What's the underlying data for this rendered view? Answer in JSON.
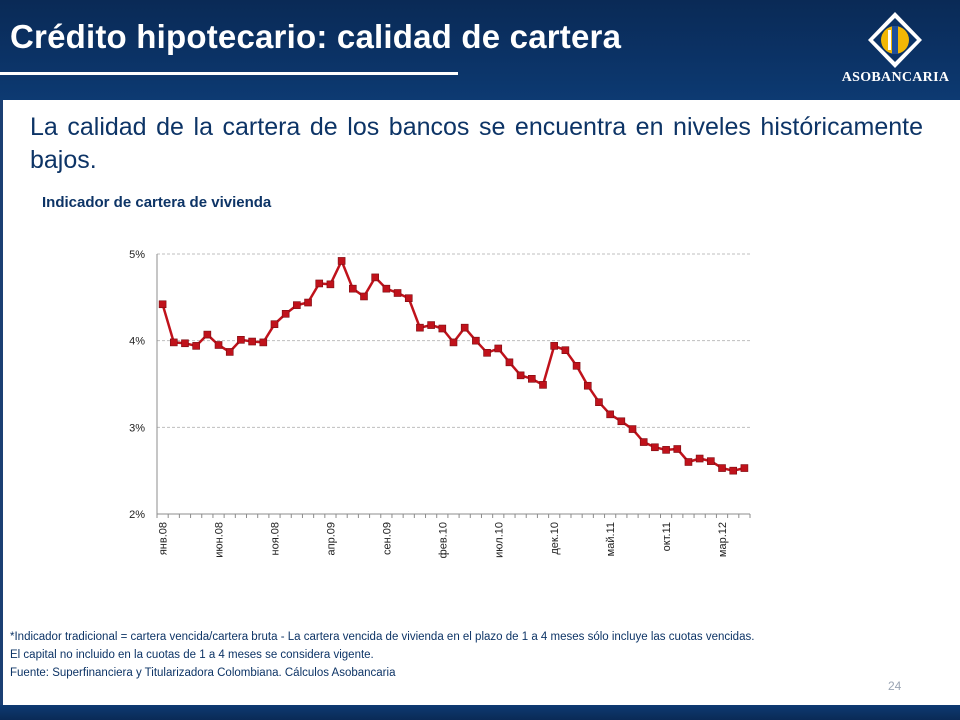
{
  "header": {
    "title": "Crédito hipotecario: calidad de cartera",
    "logo_text": "ASOBANCARIA"
  },
  "lead_text": "La calidad de la cartera de los bancos se encuentra en niveles históricamente bajos.",
  "chart_title": "Indicador de cartera de vivienda",
  "chart_data": {
    "type": "line",
    "title": "Indicador de cartera de vivienda",
    "xlabel": "",
    "ylabel": "",
    "ylim": [
      2,
      5
    ],
    "yticks": [
      "2%",
      "3%",
      "4%",
      "5%"
    ],
    "grid": true,
    "x_tick_labels": [
      "янв.08",
      "июн.08",
      "ноя.08",
      "апр.09",
      "сен.09",
      "фев.10",
      "июл.10",
      "дек.10",
      "май.11",
      "окт.11",
      "мар.12"
    ],
    "x_tick_every": 5,
    "series": [
      {
        "values": [
          4.42,
          3.98,
          3.97,
          3.94,
          4.07,
          3.95,
          3.87,
          4.01,
          3.99,
          3.98,
          4.19,
          4.31,
          4.41,
          4.44,
          4.66,
          4.65,
          4.92,
          4.6,
          4.51,
          4.73,
          4.6,
          4.55,
          4.49,
          4.15,
          4.18,
          4.14,
          3.98,
          4.15,
          4.0,
          3.86,
          3.91,
          3.75,
          3.6,
          3.56,
          3.49,
          3.94,
          3.89,
          3.71,
          3.48,
          3.29,
          3.15,
          3.07,
          2.98,
          2.83,
          2.77,
          2.74,
          2.75,
          2.6,
          2.64,
          2.61,
          2.53,
          2.5,
          2.53
        ],
        "color": "#c0121b"
      }
    ]
  },
  "notes": [
    "*Indicador tradicional = cartera vencida/cartera bruta - La cartera vencida de vivienda en el plazo de 1 a 4 meses sólo incluye las cuotas vencidas.",
    "El capital no incluido en la cuotas de 1 a 4 meses se considera vigente.",
    "Fuente: Superfinanciera  y Titularizadora Colombiana. Cálculos Asobancaria"
  ],
  "page_number": "24"
}
